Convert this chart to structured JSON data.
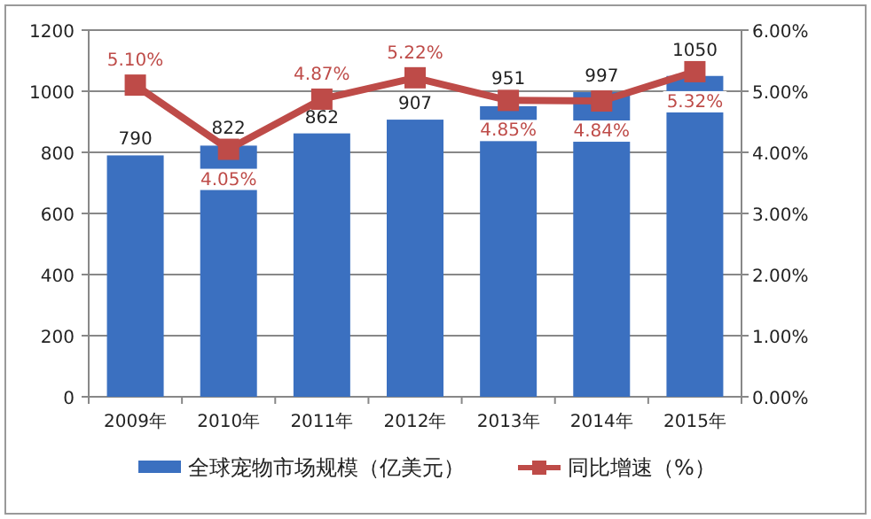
{
  "chart_data": {
    "type": "bar",
    "categories": [
      "2009年",
      "2010年",
      "2011年",
      "2012年",
      "2013年",
      "2014年",
      "2015年"
    ],
    "series": [
      {
        "name": "全球宠物市场规模（亿美元）",
        "type": "bar",
        "color": "#3b70c0",
        "values": [
          790,
          822,
          862,
          907,
          951,
          997,
          1050
        ]
      },
      {
        "name": "同比增速（%）",
        "type": "line",
        "axis": "y2",
        "color": "#be4b48",
        "marker": "square",
        "values": [
          5.1,
          4.05,
          4.87,
          5.22,
          4.85,
          4.84,
          5.32
        ],
        "value_labels": [
          "5.10%",
          "4.05%",
          "4.87%",
          "5.22%",
          "4.85%",
          "4.84%",
          "5.32%"
        ]
      }
    ],
    "data_labels": true,
    "ylim": [
      0,
      1200
    ],
    "yticks": [
      0,
      200,
      400,
      600,
      800,
      1000,
      1200
    ],
    "y2lim": [
      0,
      6
    ],
    "y2ticks": [
      {
        "value": 0,
        "label": "0.00%"
      },
      {
        "value": 1,
        "label": "1.00%"
      },
      {
        "value": 2,
        "label": "2.00%"
      },
      {
        "value": 3,
        "label": "3.00%"
      },
      {
        "value": 4,
        "label": "4.00%"
      },
      {
        "value": 5,
        "label": "5.00%"
      },
      {
        "value": 6,
        "label": "6.00%"
      }
    ],
    "grid": "y",
    "legend": "bottom"
  }
}
